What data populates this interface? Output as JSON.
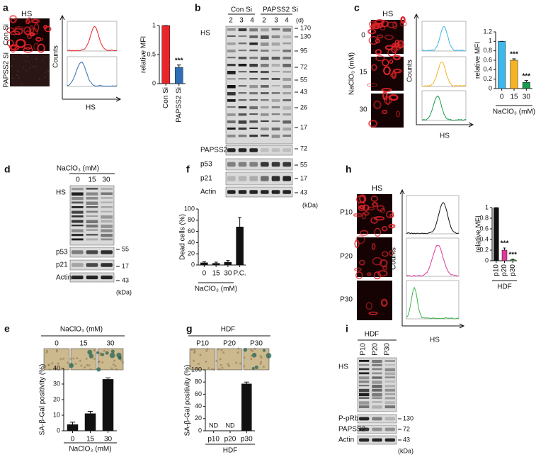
{
  "chart_data": [
    {
      "type": "bar",
      "ylabel": "relative MFI",
      "categories": [
        "Con Si",
        "PAPSS2 Si"
      ],
      "values": [
        1,
        0.28
      ],
      "errors": [
        0,
        0.04
      ],
      "colors": [
        "#e8262b",
        "#2e6db4"
      ],
      "ylim": [
        0,
        1
      ],
      "yticks": [
        0,
        0.5,
        1
      ],
      "annotations": [
        null,
        "***"
      ]
    },
    {
      "type": "bar",
      "ylabel": "relative MFI",
      "xlabel": "NaClO₃ (mM)",
      "categories": [
        "0",
        "15",
        "30"
      ],
      "values": [
        1,
        0.6,
        0.13
      ],
      "errors": [
        0,
        0.03,
        0.04
      ],
      "colors": [
        "#3db8ea",
        "#f5b324",
        "#1a9a50"
      ],
      "ylim": [
        0,
        1.2
      ],
      "yticks": [
        0,
        0.2,
        0.4,
        0.6,
        0.8,
        1,
        1.2
      ],
      "annotations": [
        null,
        "***",
        "***"
      ]
    },
    {
      "type": "bar",
      "ylabel": "Dead cells (%)",
      "xlabel": "NaClO₃ (mM)",
      "categories": [
        "0",
        "15",
        "30",
        "P.C."
      ],
      "values": [
        4,
        3,
        5,
        68
      ],
      "errors": [
        2,
        2,
        3,
        17
      ],
      "colors": [
        "#111",
        "#111",
        "#111",
        "#111"
      ],
      "ylim": [
        0,
        100
      ],
      "yticks": [
        0,
        20,
        40,
        60,
        80,
        100
      ],
      "annotations": [
        null,
        null,
        null,
        null
      ]
    },
    {
      "type": "bar",
      "ylabel": "SA-β-Gal positivity (%)",
      "xlabel": "NaClO₃ (mM)",
      "categories": [
        "0",
        "15",
        "30"
      ],
      "values": [
        4,
        11,
        33
      ],
      "errors": [
        1.5,
        1.5,
        1
      ],
      "colors": [
        "#111",
        "#111",
        "#111"
      ],
      "ylim": [
        0,
        40
      ],
      "yticks": [
        0,
        10,
        20,
        30,
        40
      ],
      "annotations": [
        null,
        null,
        null
      ]
    },
    {
      "type": "bar",
      "ylabel": "SA-β-Gal positivity (%)",
      "xlabel": "HDF",
      "categories": [
        "p10",
        "p20",
        "p30"
      ],
      "values": [
        null,
        null,
        77
      ],
      "value_labels": [
        "ND",
        "ND",
        null
      ],
      "errors": [
        null,
        null,
        3
      ],
      "colors": [
        "#111",
        "#111",
        "#111"
      ],
      "ylim": [
        0,
        100
      ],
      "yticks": [
        0,
        20,
        40,
        60,
        80,
        100
      ],
      "annotations": [
        null,
        null,
        null
      ]
    },
    {
      "type": "bar",
      "ylabel": "relative MFI",
      "xlabel": "HDF",
      "categories": [
        "p10",
        "p20",
        "p30"
      ],
      "values": [
        1,
        0.2,
        0.02
      ],
      "errors": [
        0,
        0.04,
        0.01
      ],
      "colors": [
        "#111",
        "#e0379b",
        "#3ab54a"
      ],
      "ylim": [
        0,
        1
      ],
      "yticks": [
        0,
        0.2,
        0.4,
        0.6,
        0.8,
        1
      ],
      "annotations": [
        null,
        "***",
        "***"
      ]
    }
  ],
  "panels": {
    "a": {
      "letter": "a",
      "image_title": "HS",
      "rows": [
        "Con Si",
        "PAPSS2 Si"
      ],
      "hist_ylabel": "Counts",
      "hist_xlabel": "HS"
    },
    "b": {
      "letter": "b",
      "groups": [
        "Con Si",
        "PAPSS2 Si"
      ],
      "lanes": [
        "2",
        "3",
        "4",
        "2",
        "3",
        "4"
      ],
      "lane_unit": "(d)",
      "rows": [
        "HS",
        "PAPSS2",
        "p53",
        "p21",
        "Actin"
      ],
      "markers": [
        "170",
        "130",
        "95",
        "72",
        "55",
        "43",
        "26",
        "17",
        "72",
        "55",
        "17",
        "43"
      ],
      "unit": "(kDa)"
    },
    "c": {
      "letter": "c",
      "image_title": "HS",
      "rows": [
        "0",
        "15",
        "30"
      ],
      "row_label": "NaClO₃ (mM)",
      "hist_ylabel": "Counts",
      "hist_xlabel": "HS"
    },
    "d": {
      "letter": "d",
      "treatment": "NaClO₃ (mM)",
      "lanes": [
        "0",
        "15",
        "30"
      ],
      "rows": [
        "HS",
        "p53",
        "p21",
        "Actin"
      ],
      "markers": [
        "55",
        "17",
        "43"
      ],
      "unit": "(kDa)"
    },
    "e": {
      "letter": "e",
      "treatment": "NaClO₃ (mM)",
      "images": [
        "0",
        "15",
        "30"
      ]
    },
    "f": {
      "letter": "f"
    },
    "g": {
      "letter": "g",
      "treatment": "HDF",
      "images": [
        "P10",
        "P20",
        "P30"
      ]
    },
    "h": {
      "letter": "h",
      "image_title": "HS",
      "rows": [
        "P10",
        "P20",
        "P30"
      ],
      "hist_ylabel": "Counts",
      "hist_xlabel": "HS"
    },
    "i": {
      "letter": "i",
      "treatment": "HDF",
      "lanes": [
        "P10",
        "P20",
        "P30"
      ],
      "rows": [
        "HS",
        "P-pRb",
        "PAPSS2",
        "Actin"
      ],
      "markers": [
        "130",
        "72",
        "43"
      ],
      "unit": "(kDa)"
    }
  }
}
